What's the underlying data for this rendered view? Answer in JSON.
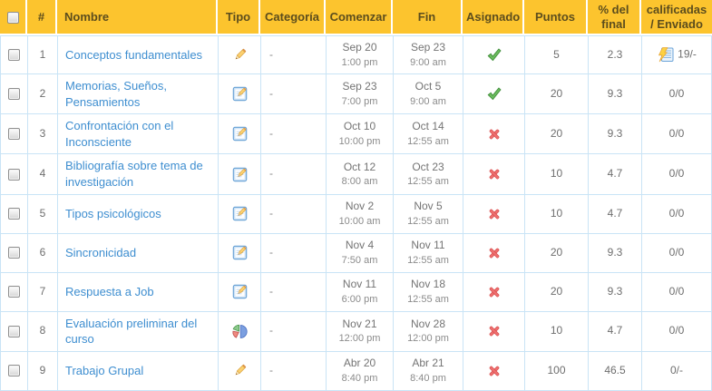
{
  "colors": {
    "header_bg": "#fcc42e",
    "header_text": "#5c4d1d",
    "cell_border": "#c9e4f6",
    "link": "#3e8ed0",
    "check_green": "#5aa64f",
    "x_red": "#e45f5f",
    "pencil_yellow": "#fcd170"
  },
  "table": {
    "columns": [
      {
        "key": "select",
        "label": ""
      },
      {
        "key": "num",
        "label": "#"
      },
      {
        "key": "name",
        "label": "Nombre"
      },
      {
        "key": "type",
        "label": "Tipo"
      },
      {
        "key": "category",
        "label": "Categoría"
      },
      {
        "key": "start",
        "label": "Comenzar"
      },
      {
        "key": "end",
        "label": "Fin"
      },
      {
        "key": "assigned",
        "label": "Asignado"
      },
      {
        "key": "points",
        "label": "Puntos"
      },
      {
        "key": "percent",
        "label": "% del final"
      },
      {
        "key": "graded",
        "label": "calificadas / Enviado"
      }
    ],
    "rows": [
      {
        "num": "1",
        "name": "Conceptos fundamentales",
        "type_icon": "pencil-icon",
        "category": "-",
        "start_date": "Sep 20",
        "start_time": "1:00 pm",
        "end_date": "Sep 23",
        "end_time": "9:00 am",
        "assigned_icon": "check-icon",
        "points": "5",
        "percent": "2.3",
        "graded": "19/-",
        "graded_icon": "quick-grade-icon"
      },
      {
        "num": "2",
        "name": "Memorias, Sueños, Pensamientos",
        "type_icon": "assignment-icon",
        "category": "-",
        "start_date": "Sep 23",
        "start_time": "7:00 pm",
        "end_date": "Oct 5",
        "end_time": "9:00 am",
        "assigned_icon": "check-icon",
        "points": "20",
        "percent": "9.3",
        "graded": "0/0",
        "graded_icon": null
      },
      {
        "num": "3",
        "name": "Confrontación con el Inconsciente",
        "type_icon": "assignment-icon",
        "category": "-",
        "start_date": "Oct 10",
        "start_time": "10:00 pm",
        "end_date": "Oct 14",
        "end_time": "12:55 am",
        "assigned_icon": "x-icon",
        "points": "20",
        "percent": "9.3",
        "graded": "0/0",
        "graded_icon": null
      },
      {
        "num": "4",
        "name": "Bibliografía sobre tema de investigación",
        "type_icon": "assignment-icon",
        "category": "-",
        "start_date": "Oct 12",
        "start_time": "8:00 am",
        "end_date": "Oct 23",
        "end_time": "12:55 am",
        "assigned_icon": "x-icon",
        "points": "10",
        "percent": "4.7",
        "graded": "0/0",
        "graded_icon": null
      },
      {
        "num": "5",
        "name": "Tipos psicológicos",
        "type_icon": "assignment-icon",
        "category": "-",
        "start_date": "Nov 2",
        "start_time": "10:00 am",
        "end_date": "Nov 5",
        "end_time": "12:55 am",
        "assigned_icon": "x-icon",
        "points": "10",
        "percent": "4.7",
        "graded": "0/0",
        "graded_icon": null
      },
      {
        "num": "6",
        "name": "Sincronicidad",
        "type_icon": "assignment-icon",
        "category": "-",
        "start_date": "Nov 4",
        "start_time": "7:50 am",
        "end_date": "Nov 11",
        "end_time": "12:55 am",
        "assigned_icon": "x-icon",
        "points": "20",
        "percent": "9.3",
        "graded": "0/0",
        "graded_icon": null
      },
      {
        "num": "7",
        "name": "Respuesta a Job",
        "type_icon": "assignment-icon",
        "category": "-",
        "start_date": "Nov 11",
        "start_time": "6:00 pm",
        "end_date": "Nov 18",
        "end_time": "12:55 am",
        "assigned_icon": "x-icon",
        "points": "20",
        "percent": "9.3",
        "graded": "0/0",
        "graded_icon": null
      },
      {
        "num": "8",
        "name": "Evaluación preliminar del curso",
        "type_icon": "pie-chart-icon",
        "category": "-",
        "start_date": "Nov 21",
        "start_time": "12:00 pm",
        "end_date": "Nov 28",
        "end_time": "12:00 pm",
        "assigned_icon": "x-icon",
        "points": "10",
        "percent": "4.7",
        "graded": "0/0",
        "graded_icon": null
      },
      {
        "num": "9",
        "name": "Trabajo Grupal",
        "type_icon": "pencil-icon",
        "category": "-",
        "start_date": "Abr 20",
        "start_time": "8:40 pm",
        "end_date": "Abr 21",
        "end_time": "8:40 pm",
        "assigned_icon": "x-icon",
        "points": "100",
        "percent": "46.5",
        "graded": "0/-",
        "graded_icon": null
      }
    ]
  }
}
